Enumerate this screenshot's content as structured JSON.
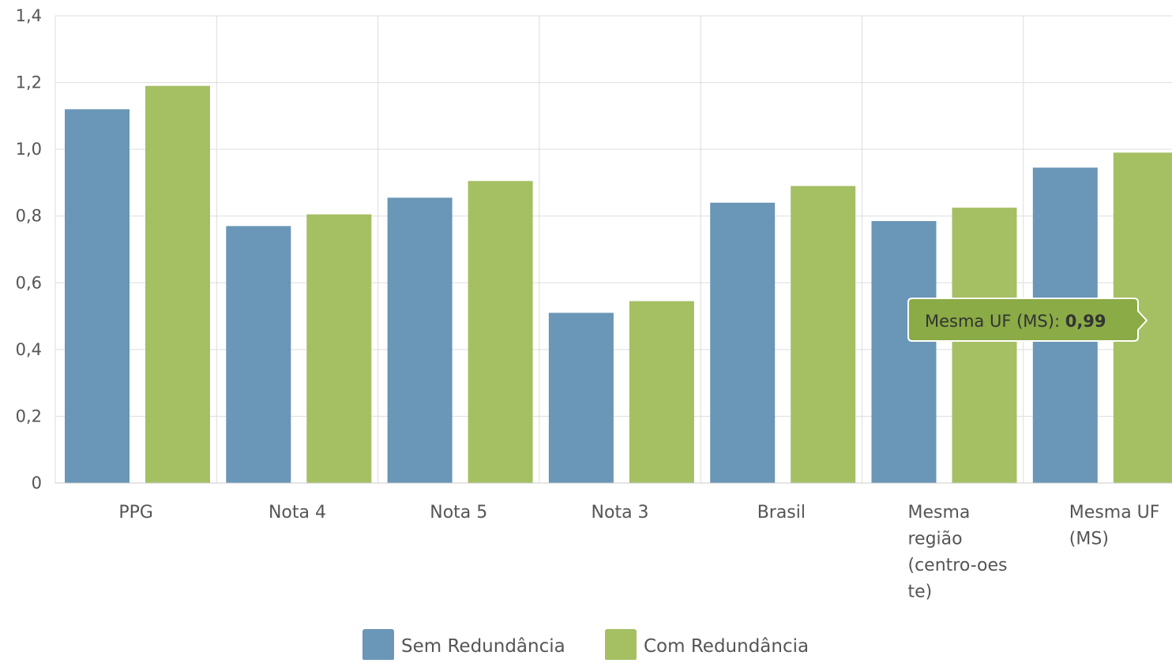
{
  "chart_data": {
    "type": "bar",
    "categories": [
      [
        "PPG"
      ],
      [
        "Nota 4"
      ],
      [
        "Nota 5"
      ],
      [
        "Nota 3"
      ],
      [
        "Brasil"
      ],
      [
        "Mesma",
        "região",
        "(centro-oes",
        "te)"
      ],
      [
        "Mesma UF",
        "(MS)"
      ]
    ],
    "series": [
      {
        "name": "Sem Redundância",
        "color": "#6a96b7",
        "values": [
          1.12,
          0.77,
          0.855,
          0.51,
          0.84,
          0.785,
          0.945
        ]
      },
      {
        "name": "Com Redundância",
        "color": "#a5bf63",
        "values": [
          1.19,
          0.805,
          0.905,
          0.545,
          0.89,
          0.825,
          0.99
        ]
      }
    ],
    "ylim": [
      0,
      1.4
    ],
    "yticks": [
      {
        "value": 0,
        "label": "0"
      },
      {
        "value": 0.2,
        "label": "0,2"
      },
      {
        "value": 0.4,
        "label": "0,4"
      },
      {
        "value": 0.6,
        "label": "0,6"
      },
      {
        "value": 0.8,
        "label": "0,8"
      },
      {
        "value": 1.0,
        "label": "1,0"
      },
      {
        "value": 1.2,
        "label": "1,2"
      },
      {
        "value": 1.4,
        "label": "1,4"
      }
    ],
    "grid": true,
    "legend_position": "bottom-center",
    "tooltip": {
      "label": "Mesma UF (MS): ",
      "value": "0,99",
      "series_index": 1,
      "category_index": 6
    },
    "colors": {
      "grid": "#dddddd",
      "tooltip_fill": "#8aab45",
      "tooltip_border": "#ffffff"
    }
  }
}
